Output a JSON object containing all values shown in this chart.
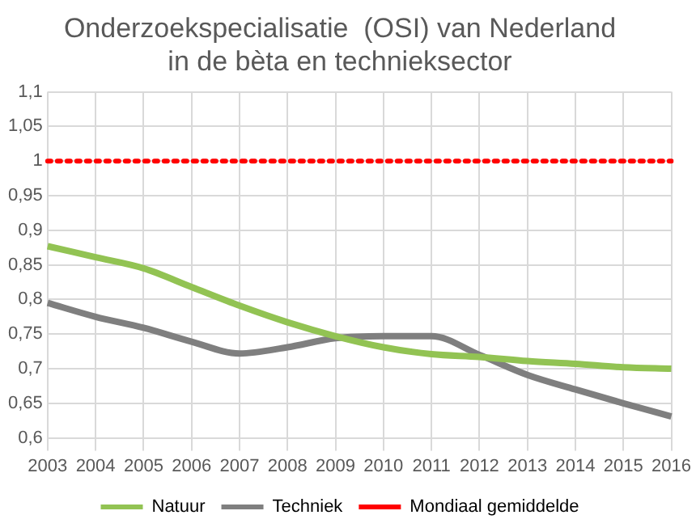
{
  "chart_data": {
    "type": "line",
    "title": [
      "Onderzoekspecialisatie  (OSI) van Nederland",
      "in de bèta en technieksector"
    ],
    "categories": [
      "2003",
      "2004",
      "2005",
      "2006",
      "2007",
      "2008",
      "2009",
      "2010",
      "2011",
      "2012",
      "2013",
      "2014",
      "2015",
      "2016"
    ],
    "series": [
      {
        "name": "Natuur",
        "color": "#92c353",
        "values": [
          0.877,
          0.861,
          0.845,
          0.818,
          0.791,
          0.767,
          0.747,
          0.731,
          0.721,
          0.717,
          0.711,
          0.707,
          0.702,
          0.7
        ]
      },
      {
        "name": "Techniek",
        "color": "#7f7f7f",
        "values": [
          0.795,
          0.775,
          0.759,
          0.739,
          0.722,
          0.731,
          0.744,
          0.747,
          0.747,
          0.72,
          0.691,
          0.67,
          0.65,
          0.631
        ]
      },
      {
        "name": "Mondiaal gemiddelde",
        "color": "#ff0000",
        "line_style": "dotted",
        "values": [
          1,
          1,
          1,
          1,
          1,
          1,
          1,
          1,
          1,
          1,
          1,
          1,
          1,
          1
        ]
      }
    ],
    "ylim": [
      0.6,
      1.1
    ],
    "yticks": [
      {
        "value": 0.6,
        "label": "0,6"
      },
      {
        "value": 0.65,
        "label": "0,65"
      },
      {
        "value": 0.7,
        "label": "0,7"
      },
      {
        "value": 0.75,
        "label": "0,75"
      },
      {
        "value": 0.8,
        "label": "0,8"
      },
      {
        "value": 0.85,
        "label": "0,85"
      },
      {
        "value": 0.9,
        "label": "0,9"
      },
      {
        "value": 0.95,
        "label": "0,95"
      },
      {
        "value": 1,
        "label": "1"
      },
      {
        "value": 1.05,
        "label": "1,05"
      },
      {
        "value": 1.1,
        "label": "1,1"
      }
    ],
    "grid": true,
    "legend": "bottom",
    "marker": "none",
    "line_style": "solid"
  }
}
